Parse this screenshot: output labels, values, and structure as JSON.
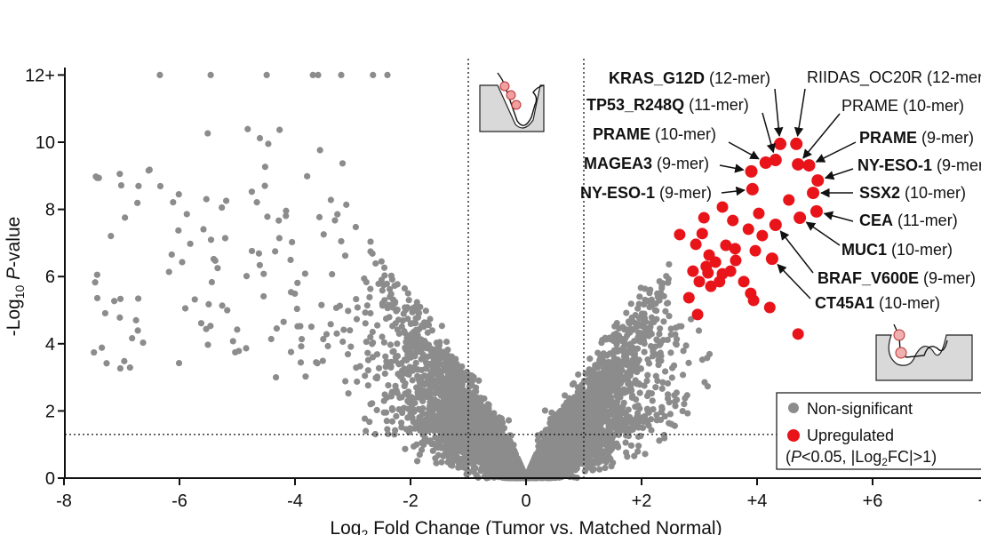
{
  "chart_data": {
    "type": "scatter",
    "subtype": "volcano",
    "title": "",
    "xlabel": "Log2 Fold Change (Tumor vs. Matched Normal)",
    "xlabel_parts": {
      "pre": "Log",
      "sub": "2",
      "post": " Fold Change (Tumor vs. Matched Normal)"
    },
    "ylabel": "-Log10 P-value",
    "ylabel_parts": {
      "pre": "-Log",
      "sub": "10",
      "italic": "P",
      "post": "-value"
    },
    "xlim": [
      -8,
      8
    ],
    "ylim": [
      0,
      12
    ],
    "x_ticks": [
      "-8",
      "-6",
      "-4",
      "-2",
      "0",
      "+2",
      "+4",
      "+6",
      "+8"
    ],
    "y_ticks": [
      "0",
      "2",
      "4",
      "6",
      "8",
      "10",
      "12+"
    ],
    "grid": false,
    "thresholds": {
      "fold_change_x": [
        -1,
        1
      ],
      "pvalue_y": 1.3
    },
    "colors": {
      "nonsignificant": "#8c8c8c",
      "upregulated": "#e8141a"
    },
    "legend": {
      "placement": "bottom-right",
      "entries": [
        {
          "name": "Non-significant",
          "color": "#8c8c8c"
        },
        {
          "name": "Upregulated",
          "color": "#e8141a",
          "note_pre": "(",
          "note_italic": "P",
          "note_mid": "<0.05, |Log",
          "note_sub": "2",
          "note_post": "FC|>1)"
        }
      ]
    },
    "nonsignificant_capped_x": [
      -6.34,
      -5.46,
      -4.49,
      -3.69,
      -3.6,
      -3.2,
      -2.65,
      -2.4
    ],
    "labeled_points": [
      {
        "gene": "KRAS_G12D",
        "length": "(12-mer)",
        "bold": true,
        "x": 4.4,
        "y": 9.95
      },
      {
        "gene": "RIIDAS_OC20R",
        "length": "(12-mer)",
        "bold": false,
        "x": 4.68,
        "y": 9.95
      },
      {
        "gene": "TP53_R248Q",
        "length": "(11-mer)",
        "bold": true,
        "x": 4.32,
        "y": 9.47
      },
      {
        "gene": "PRAME",
        "length": "(10-mer)",
        "bold": true,
        "x": 4.15,
        "y": 9.39
      },
      {
        "gene": "MAGEA3",
        "length": "(9-mer)",
        "bold": true,
        "x": 3.9,
        "y": 9.13
      },
      {
        "gene": "NY-ESO-1",
        "length": "(9-mer)",
        "bold": true,
        "x": 3.92,
        "y": 8.6
      },
      {
        "gene": "PRAME",
        "length": "(10-mer)",
        "bold": false,
        "x": 4.71,
        "y": 9.34
      },
      {
        "gene": "PRAME",
        "length": "(9-mer)",
        "bold": true,
        "x": 4.9,
        "y": 9.31
      },
      {
        "gene": "NY-ESO-1",
        "length": "(9-mer)",
        "bold": true,
        "x": 5.05,
        "y": 8.86
      },
      {
        "gene": "SSX2",
        "length": "(10-mer)",
        "bold": true,
        "x": 4.97,
        "y": 8.49
      },
      {
        "gene": "CEA",
        "length": "(11-mer)",
        "bold": true,
        "x": 5.03,
        "y": 7.94
      },
      {
        "gene": "MUC1",
        "length": "(10-mer)",
        "bold": true,
        "x": 4.74,
        "y": 7.75
      },
      {
        "gene": "BRAF_V600E",
        "length": "(9-mer)",
        "bold": true,
        "x": 4.32,
        "y": 7.54
      },
      {
        "gene": "CT45A1",
        "length": "(10-mer)",
        "bold": true,
        "x": 4.26,
        "y": 6.53
      }
    ],
    "upregulated_points": [
      [
        3.4,
        8.07
      ],
      [
        3.08,
        7.75
      ],
      [
        2.66,
        7.25
      ],
      [
        3.05,
        7.28
      ],
      [
        3.58,
        7.67
      ],
      [
        4.03,
        7.88
      ],
      [
        4.55,
        8.28
      ],
      [
        3.85,
        7.41
      ],
      [
        2.94,
        6.96
      ],
      [
        3.46,
        6.93
      ],
      [
        3.62,
        6.83
      ],
      [
        4.09,
        7.22
      ],
      [
        3.97,
        6.77
      ],
      [
        3.17,
        6.64
      ],
      [
        3.63,
        6.48
      ],
      [
        2.89,
        6.16
      ],
      [
        3.15,
        6.11
      ],
      [
        3.4,
        6.08
      ],
      [
        3.54,
        6.16
      ],
      [
        3.0,
        5.85
      ],
      [
        3.2,
        5.71
      ],
      [
        3.35,
        5.85
      ],
      [
        3.77,
        5.85
      ],
      [
        2.82,
        5.37
      ],
      [
        3.89,
        5.5
      ],
      [
        3.94,
        5.29
      ],
      [
        4.22,
        5.08
      ],
      [
        2.97,
        4.87
      ],
      [
        4.71,
        4.29
      ],
      [
        3.12,
        6.3
      ],
      [
        3.28,
        6.43
      ]
    ]
  }
}
